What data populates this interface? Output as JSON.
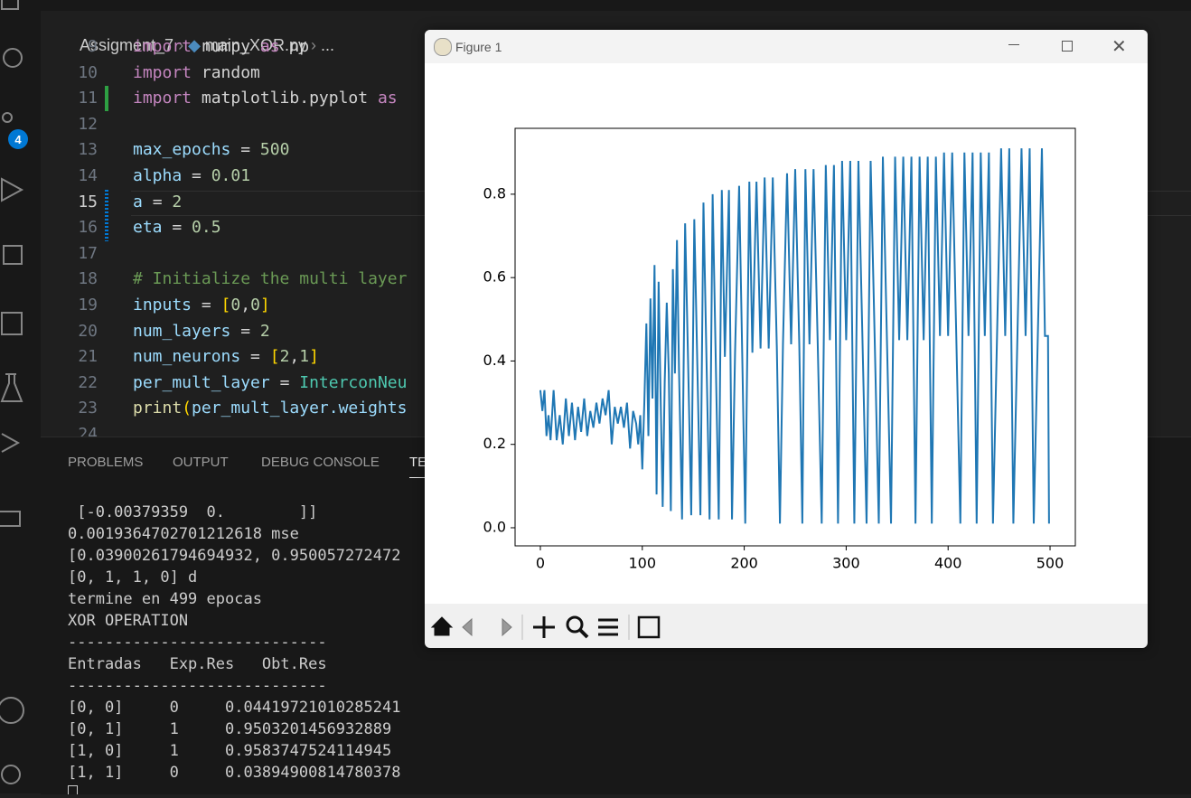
{
  "breadcrumb": [
    "Assigment_7",
    "main_XOR.py",
    "..."
  ],
  "activity_badge": "4",
  "editor": {
    "lines": [
      {
        "number": "9",
        "tokens": [
          {
            "text": "import ",
            "color": "#c586c0"
          },
          {
            "text": "numpy ",
            "color": "#d4d4d4"
          },
          {
            "text": "as ",
            "color": "#c586c0"
          },
          {
            "text": "np",
            "color": "#d4d4d4"
          }
        ]
      },
      {
        "number": "10",
        "tokens": [
          {
            "text": "import ",
            "color": "#c586c0"
          },
          {
            "text": "random",
            "color": "#d4d4d4"
          }
        ]
      },
      {
        "number": "11",
        "tokens": [
          {
            "text": "import ",
            "color": "#c586c0"
          },
          {
            "text": "matplotlib.pyplot ",
            "color": "#d4d4d4"
          },
          {
            "text": "as",
            "color": "#c586c0"
          }
        ]
      },
      {
        "number": "12",
        "tokens": []
      },
      {
        "number": "13",
        "tokens": [
          {
            "text": "max_epochs ",
            "color": "#9cdcfe"
          },
          {
            "text": "= ",
            "color": "#d4d4d4"
          },
          {
            "text": "500",
            "color": "#b5cea8"
          }
        ]
      },
      {
        "number": "14",
        "tokens": [
          {
            "text": "alpha ",
            "color": "#9cdcfe"
          },
          {
            "text": "= ",
            "color": "#d4d4d4"
          },
          {
            "text": "0.01",
            "color": "#b5cea8"
          }
        ]
      },
      {
        "number": "15",
        "tokens": [
          {
            "text": "a ",
            "color": "#9cdcfe"
          },
          {
            "text": "= ",
            "color": "#d4d4d4"
          },
          {
            "text": "2",
            "color": "#b5cea8"
          }
        ]
      },
      {
        "number": "16",
        "tokens": [
          {
            "text": "eta ",
            "color": "#9cdcfe"
          },
          {
            "text": "= ",
            "color": "#d4d4d4"
          },
          {
            "text": "0.5",
            "color": "#b5cea8"
          }
        ]
      },
      {
        "number": "17",
        "tokens": []
      },
      {
        "number": "18",
        "tokens": [
          {
            "text": "# Initialize the multi layer",
            "color": "#6a9955"
          }
        ]
      },
      {
        "number": "19",
        "tokens": [
          {
            "text": "inputs ",
            "color": "#9cdcfe"
          },
          {
            "text": "= ",
            "color": "#d4d4d4"
          },
          {
            "text": "[",
            "color": "#ffd700"
          },
          {
            "text": "0",
            "color": "#b5cea8"
          },
          {
            "text": ",",
            "color": "#d4d4d4"
          },
          {
            "text": "0",
            "color": "#b5cea8"
          },
          {
            "text": "]",
            "color": "#ffd700"
          }
        ]
      },
      {
        "number": "20",
        "tokens": [
          {
            "text": "num_layers ",
            "color": "#9cdcfe"
          },
          {
            "text": "= ",
            "color": "#d4d4d4"
          },
          {
            "text": "2",
            "color": "#b5cea8"
          }
        ]
      },
      {
        "number": "21",
        "tokens": [
          {
            "text": "num_neurons ",
            "color": "#9cdcfe"
          },
          {
            "text": "= ",
            "color": "#d4d4d4"
          },
          {
            "text": "[",
            "color": "#ffd700"
          },
          {
            "text": "2",
            "color": "#b5cea8"
          },
          {
            "text": ",",
            "color": "#d4d4d4"
          },
          {
            "text": "1",
            "color": "#b5cea8"
          },
          {
            "text": "]",
            "color": "#ffd700"
          }
        ]
      },
      {
        "number": "22",
        "tokens": [
          {
            "text": "per_mult_layer ",
            "color": "#9cdcfe"
          },
          {
            "text": "= ",
            "color": "#d4d4d4"
          },
          {
            "text": "InterconNeu",
            "color": "#4ec9b0"
          }
        ]
      },
      {
        "number": "23",
        "tokens": [
          {
            "text": "print",
            "color": "#dcdcaa"
          },
          {
            "text": "(",
            "color": "#ffd700"
          },
          {
            "text": "per_mult_layer.weights",
            "color": "#9cdcfe"
          }
        ]
      },
      {
        "number": "24",
        "tokens": []
      }
    ]
  },
  "panel_tabs": [
    "PROBLEMS",
    "OUTPUT",
    "DEBUG CONSOLE",
    "TERMINAL"
  ],
  "terminal": {
    "lines": [
      " [-0.00379359  0.        ]]",
      "0.0019364702701212618 mse",
      "[0.03900261794694932, 0.950057272472",
      "[0, 1, 1, 0] d",
      "termine en 499 epocas",
      "XOR OPERATION",
      "----------------------------",
      "Entradas   Exp.Res   Obt.Res",
      "----------------------------",
      "[0, 0]     0     0.04419721010285241",
      "[0, 1]     1     0.9503201456932889",
      "[1, 0]     1     0.9583747524114945",
      "[1, 1]     0     0.03894900814780378"
    ]
  },
  "figure": {
    "title": "Figure 1"
  },
  "chart_data": {
    "type": "line",
    "x": [
      0,
      2,
      4,
      6,
      8,
      10,
      13,
      16,
      19,
      22,
      25,
      28,
      31,
      34,
      37,
      40,
      43,
      46,
      49,
      52,
      55,
      58,
      61,
      64,
      67,
      70,
      73,
      76,
      79,
      82,
      85,
      88,
      91,
      94,
      96,
      98,
      100,
      102,
      104,
      106,
      108,
      110,
      112,
      114,
      116,
      118,
      120,
      122,
      124,
      126,
      128,
      130,
      132,
      134,
      136,
      139,
      142,
      145,
      148,
      151,
      154,
      157,
      160,
      163,
      166,
      169,
      172,
      175,
      178,
      181,
      185,
      188,
      191,
      195,
      198,
      201,
      205,
      208,
      212,
      216,
      220,
      224,
      228,
      232,
      235,
      238,
      242,
      246,
      250,
      254,
      257,
      260,
      264,
      268,
      272,
      276,
      280,
      284,
      288,
      292,
      296,
      300,
      304,
      308,
      312,
      316,
      320,
      324,
      328,
      332,
      336,
      340,
      344,
      348,
      352,
      356,
      360,
      364,
      368,
      372,
      376,
      380,
      384,
      388,
      392,
      396,
      400,
      404,
      408,
      412,
      416,
      420,
      424,
      428,
      432,
      436,
      440,
      444,
      448,
      452,
      456,
      460,
      464,
      468,
      472,
      476,
      480,
      484,
      488,
      492,
      495,
      498,
      499
    ],
    "series": [
      {
        "color": "#1f77b4",
        "values": [
          0.33,
          0.28,
          0.33,
          0.22,
          0.27,
          0.21,
          0.33,
          0.21,
          0.27,
          0.2,
          0.31,
          0.22,
          0.3,
          0.21,
          0.29,
          0.23,
          0.31,
          0.22,
          0.28,
          0.24,
          0.3,
          0.25,
          0.31,
          0.27,
          0.33,
          0.2,
          0.29,
          0.25,
          0.29,
          0.24,
          0.3,
          0.19,
          0.28,
          0.25,
          0.2,
          0.27,
          0.14,
          0.3,
          0.49,
          0.22,
          0.55,
          0.31,
          0.63,
          0.08,
          0.59,
          0.31,
          0.05,
          0.35,
          0.54,
          0.37,
          0.04,
          0.62,
          0.37,
          0.69,
          0.38,
          0.02,
          0.73,
          0.39,
          0.03,
          0.74,
          0.39,
          0.03,
          0.78,
          0.4,
          0.02,
          0.8,
          0.41,
          0.02,
          0.81,
          0.41,
          0.81,
          0.02,
          0.42,
          0.82,
          0.42,
          0.01,
          0.83,
          0.42,
          0.83,
          0.43,
          0.84,
          0.43,
          0.84,
          0.43,
          0.01,
          0.44,
          0.85,
          0.44,
          0.86,
          0.44,
          0.01,
          0.86,
          0.44,
          0.86,
          0.45,
          0.01,
          0.87,
          0.45,
          0.87,
          0.01,
          0.88,
          0.45,
          0.88,
          0.01,
          0.88,
          0.45,
          0.01,
          0.88,
          0.45,
          0.01,
          0.89,
          0.45,
          0.01,
          0.89,
          0.45,
          0.89,
          0.45,
          0.89,
          0.01,
          0.89,
          0.45,
          0.89,
          0.01,
          0.89,
          0.46,
          0.9,
          0.46,
          0.9,
          0.46,
          0.01,
          0.9,
          0.46,
          0.9,
          0.01,
          0.9,
          0.46,
          0.9,
          0.01,
          0.46,
          0.91,
          0.46,
          0.91,
          0.01,
          0.46,
          0.91,
          0.46,
          0.91,
          0.01,
          0.46,
          0.91,
          0.46,
          0.46,
          0.01
        ]
      }
    ],
    "xlim": [
      -24.8,
      524.8
    ],
    "xticks": [
      0,
      100,
      200,
      300,
      400,
      500
    ],
    "ylim": [
      -0.0434,
      0.958
    ],
    "yticks": [
      {
        "value": 0,
        "label": "0.0"
      },
      0.2,
      0.4,
      0.6,
      0.8
    ]
  }
}
